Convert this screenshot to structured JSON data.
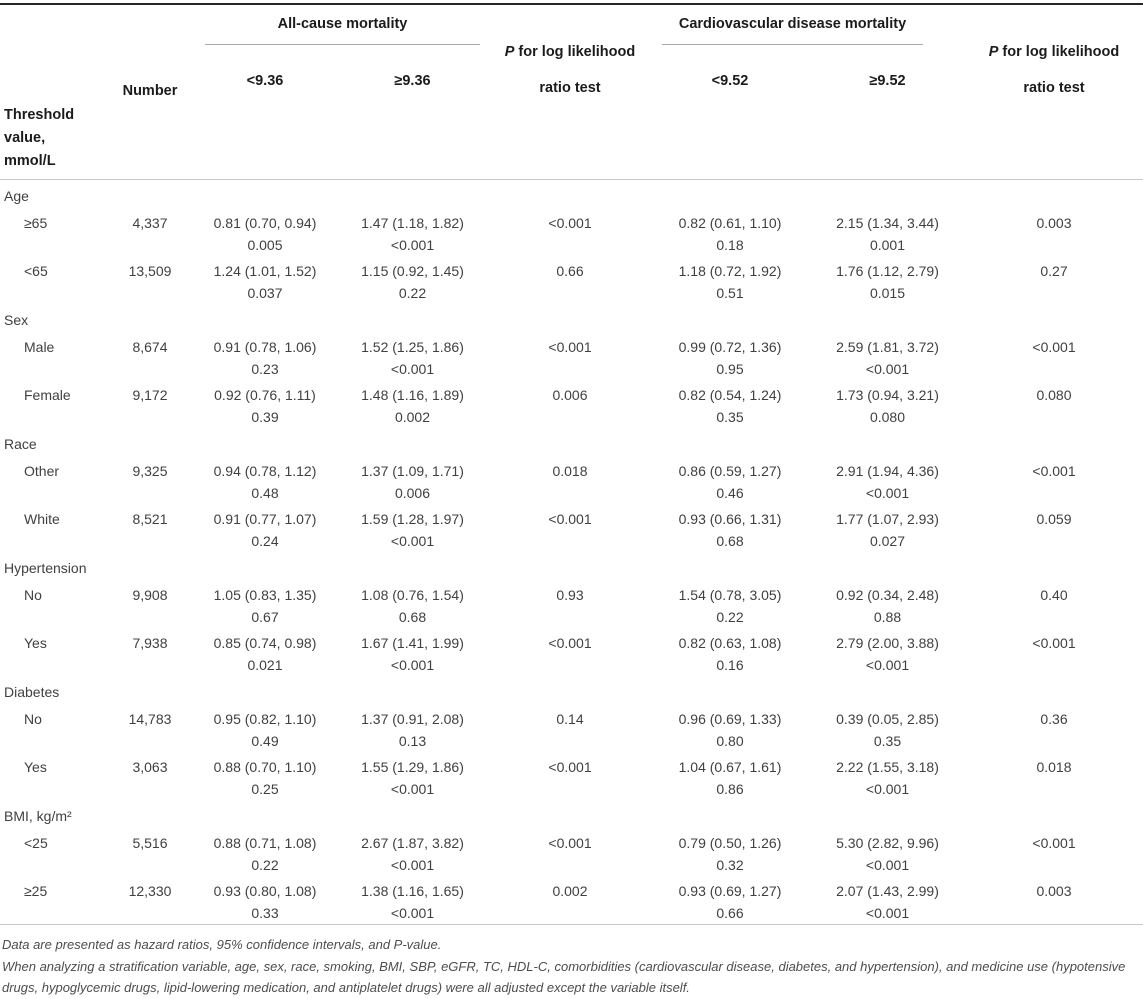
{
  "table": {
    "header": {
      "threshold_label": "Threshold value, mmol/L",
      "number_label": "Number",
      "group_allcause": "All-cause mortality",
      "group_cvd": "Cardiovascular disease mortality",
      "p_italic": "P",
      "p_rest": " for log likelihood",
      "p_line2": "ratio test",
      "allcause_below": "<9.36",
      "allcause_above": "≥9.36",
      "cvd_below": "<9.52",
      "cvd_above": "≥9.52"
    },
    "sections": [
      {
        "label": "Age",
        "rows": [
          {
            "label": "≥65",
            "number": "4,337",
            "ac_lt": [
              "0.81 (0.70, 0.94)",
              "0.005"
            ],
            "ac_ge": [
              "1.47 (1.18, 1.82)",
              "<0.001"
            ],
            "ac_p": "<0.001",
            "cv_lt": [
              "0.82 (0.61, 1.10)",
              "0.18"
            ],
            "cv_ge": [
              "2.15 (1.34, 3.44)",
              "0.001"
            ],
            "cv_p": "0.003"
          },
          {
            "label": "<65",
            "number": "13,509",
            "ac_lt": [
              "1.24 (1.01, 1.52)",
              "0.037"
            ],
            "ac_ge": [
              "1.15 (0.92, 1.45)",
              "0.22"
            ],
            "ac_p": "0.66",
            "cv_lt": [
              "1.18 (0.72, 1.92)",
              "0.51"
            ],
            "cv_ge": [
              "1.76 (1.12, 2.79)",
              "0.015"
            ],
            "cv_p": "0.27"
          }
        ]
      },
      {
        "label": "Sex",
        "rows": [
          {
            "label": "Male",
            "number": "8,674",
            "ac_lt": [
              "0.91 (0.78, 1.06)",
              "0.23"
            ],
            "ac_ge": [
              "1.52 (1.25, 1.86)",
              "<0.001"
            ],
            "ac_p": "<0.001",
            "cv_lt": [
              "0.99 (0.72, 1.36)",
              "0.95"
            ],
            "cv_ge": [
              "2.59 (1.81, 3.72)",
              "<0.001"
            ],
            "cv_p": "<0.001"
          },
          {
            "label": "Female",
            "number": "9,172",
            "ac_lt": [
              "0.92 (0.76, 1.11)",
              "0.39"
            ],
            "ac_ge": [
              "1.48 (1.16, 1.89)",
              "0.002"
            ],
            "ac_p": "0.006",
            "cv_lt": [
              "0.82 (0.54, 1.24)",
              "0.35"
            ],
            "cv_ge": [
              "1.73 (0.94, 3.21)",
              "0.080"
            ],
            "cv_p": "0.080"
          }
        ]
      },
      {
        "label": "Race",
        "rows": [
          {
            "label": "Other",
            "number": "9,325",
            "ac_lt": [
              "0.94 (0.78, 1.12)",
              "0.48"
            ],
            "ac_ge": [
              "1.37 (1.09, 1.71)",
              "0.006"
            ],
            "ac_p": "0.018",
            "cv_lt": [
              "0.86 (0.59, 1.27)",
              "0.46"
            ],
            "cv_ge": [
              "2.91 (1.94, 4.36)",
              "<0.001"
            ],
            "cv_p": "<0.001"
          },
          {
            "label": "White",
            "number": "8,521",
            "ac_lt": [
              "0.91 (0.77, 1.07)",
              "0.24"
            ],
            "ac_ge": [
              "1.59 (1.28, 1.97)",
              "<0.001"
            ],
            "ac_p": "<0.001",
            "cv_lt": [
              "0.93 (0.66, 1.31)",
              "0.68"
            ],
            "cv_ge": [
              "1.77 (1.07, 2.93)",
              "0.027"
            ],
            "cv_p": "0.059"
          }
        ]
      },
      {
        "label": "Hypertension",
        "rows": [
          {
            "label": "No",
            "number": "9,908",
            "ac_lt": [
              "1.05 (0.83, 1.35)",
              "0.67"
            ],
            "ac_ge": [
              "1.08 (0.76, 1.54)",
              "0.68"
            ],
            "ac_p": "0.93",
            "cv_lt": [
              "1.54 (0.78, 3.05)",
              "0.22"
            ],
            "cv_ge": [
              "0.92 (0.34, 2.48)",
              "0.88"
            ],
            "cv_p": "0.40"
          },
          {
            "label": "Yes",
            "number": "7,938",
            "ac_lt": [
              "0.85 (0.74, 0.98)",
              "0.021"
            ],
            "ac_ge": [
              "1.67 (1.41, 1.99)",
              "<0.001"
            ],
            "ac_p": "<0.001",
            "cv_lt": [
              "0.82 (0.63, 1.08)",
              "0.16"
            ],
            "cv_ge": [
              "2.79 (2.00, 3.88)",
              "<0.001"
            ],
            "cv_p": "<0.001"
          }
        ]
      },
      {
        "label": "Diabetes",
        "rows": [
          {
            "label": "No",
            "number": "14,783",
            "ac_lt": [
              "0.95 (0.82, 1.10)",
              "0.49"
            ],
            "ac_ge": [
              "1.37 (0.91, 2.08)",
              "0.13"
            ],
            "ac_p": "0.14",
            "cv_lt": [
              "0.96 (0.69, 1.33)",
              "0.80"
            ],
            "cv_ge": [
              "0.39 (0.05, 2.85)",
              "0.35"
            ],
            "cv_p": "0.36"
          },
          {
            "label": "Yes",
            "number": "3,063",
            "ac_lt": [
              "0.88 (0.70, 1.10)",
              "0.25"
            ],
            "ac_ge": [
              "1.55 (1.29, 1.86)",
              "<0.001"
            ],
            "ac_p": "<0.001",
            "cv_lt": [
              "1.04 (0.67, 1.61)",
              "0.86"
            ],
            "cv_ge": [
              "2.22 (1.55, 3.18)",
              "<0.001"
            ],
            "cv_p": "0.018"
          }
        ]
      },
      {
        "label": "BMI, kg/m²",
        "rows": [
          {
            "label": "<25",
            "number": "5,516",
            "ac_lt": [
              "0.88 (0.71, 1.08)",
              "0.22"
            ],
            "ac_ge": [
              "2.67 (1.87, 3.82)",
              "<0.001"
            ],
            "ac_p": "<0.001",
            "cv_lt": [
              "0.79 (0.50, 1.26)",
              "0.32"
            ],
            "cv_ge": [
              "5.30 (2.82, 9.96)",
              "<0.001"
            ],
            "cv_p": "<0.001"
          },
          {
            "label": "≥25",
            "number": "12,330",
            "ac_lt": [
              "0.93 (0.80, 1.08)",
              "0.33"
            ],
            "ac_ge": [
              "1.38 (1.16, 1.65)",
              "<0.001"
            ],
            "ac_p": "0.002",
            "cv_lt": [
              "0.93 (0.69, 1.27)",
              "0.66"
            ],
            "cv_ge": [
              "2.07 (1.43, 2.99)",
              "<0.001"
            ],
            "cv_p": "0.003"
          }
        ]
      }
    ],
    "footnotes": [
      "Data are presented as hazard ratios, 95% confidence intervals, and P-value.",
      "When analyzing a stratification variable, age, sex, race, smoking, BMI, SBP, eGFR, TC, HDL-C, comorbidities (cardiovascular disease, diabetes, and hypertension), and medicine use (hypotensive drugs, hypoglycemic drugs, lipid-lowering medication, and antiplatelet drugs) were all adjusted except the variable itself."
    ]
  }
}
